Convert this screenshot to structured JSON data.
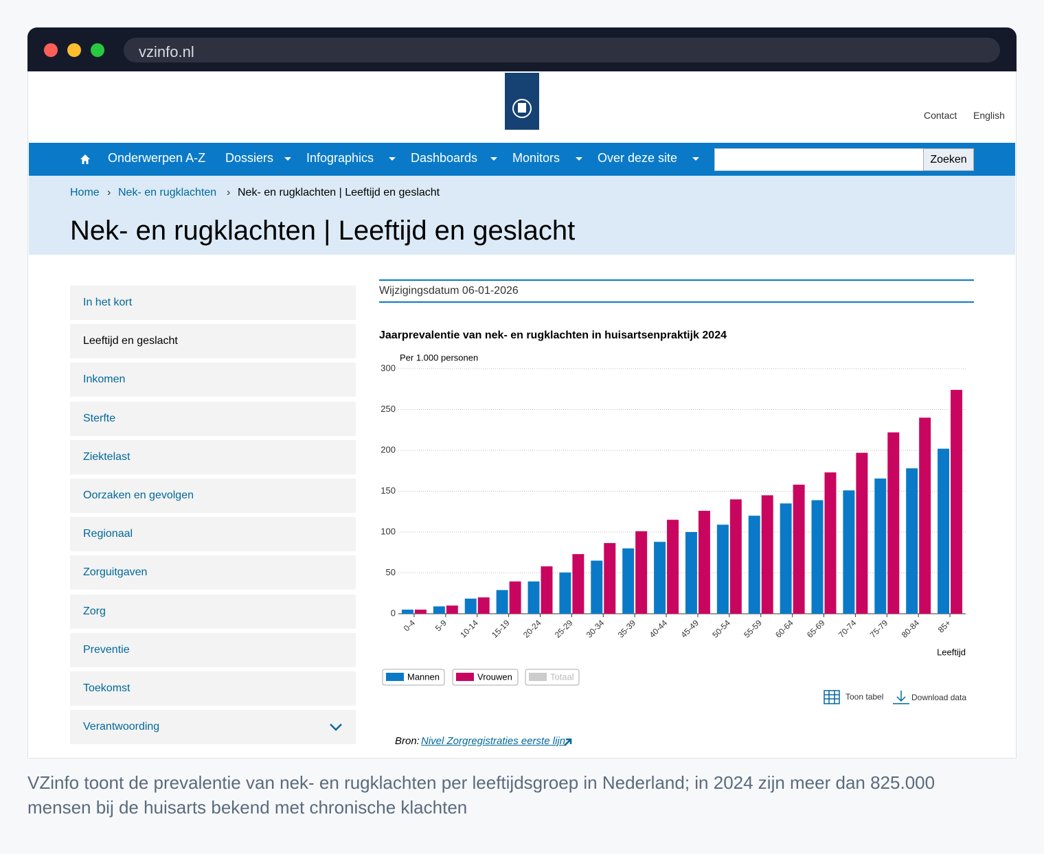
{
  "browser": {
    "url": "vzinfo.nl"
  },
  "header": {
    "links": [
      "Contact",
      "English"
    ]
  },
  "nav": {
    "items": [
      "Onderwerpen A-Z",
      "Dossiers",
      "Infographics",
      "Dashboards",
      "Monitors",
      "Over deze site"
    ],
    "search_button": "Zoeken"
  },
  "breadcrumb": [
    "Home",
    "Nek- en rugklachten",
    "Nek- en rugklachten | Leeftijd en geslacht"
  ],
  "page_title": "Nek- en rugklachten | Leeftijd en geslacht",
  "sidebar": [
    "In het kort",
    "Leeftijd en geslacht",
    "Inkomen",
    "Sterfte",
    "Ziektelast",
    "Oorzaken en gevolgen",
    "Regionaal",
    "Zorguitgaven",
    "Zorg",
    "Preventie",
    "Toekomst",
    "Verantwoording"
  ],
  "modified": "Wijzigingsdatum 06-01-2026",
  "chart_data": {
    "type": "bar",
    "title": "Jaarprevalentie van nek- en rugklachten in huisartsenpraktijk 2024",
    "y_label": "Per 1.000 personen",
    "x_label": "Leeftijd",
    "categories": [
      "0-4",
      "5-9",
      "10-14",
      "15-19",
      "20-24",
      "25-29",
      "30-34",
      "35-39",
      "40-44",
      "45-49",
      "50-54",
      "55-59",
      "60-64",
      "65-69",
      "70-74",
      "75-79",
      "80-84",
      "85+"
    ],
    "series": [
      {
        "name": "Mannen",
        "color": "#0a7ac8",
        "values": [
          5,
          9,
          18.5,
          29,
          39.5,
          50.5,
          65,
          80,
          88,
          100,
          109,
          120,
          135,
          139,
          151,
          165.5,
          178,
          202
        ]
      },
      {
        "name": "Vrouwen",
        "color": "#c9065f",
        "values": [
          5,
          10,
          20,
          39.5,
          58,
          73,
          86.5,
          101,
          115,
          126,
          140,
          145,
          158,
          173,
          197,
          222,
          240,
          274
        ]
      }
    ],
    "inactive_legend": [
      {
        "name": "Totaal",
        "color": "#cccccc"
      }
    ],
    "ylim": [
      0,
      300
    ],
    "yticks": [
      0,
      50,
      100,
      150,
      200,
      250,
      300
    ],
    "grid": true
  },
  "chart_actions": [
    "Toon tabel",
    "Download data"
  ],
  "source": {
    "label": "Bron:",
    "link": "Nivel Zorgregistraties eerste lijn"
  },
  "caption": "VZinfo toont de prevalentie van nek- en rugklachten per leeftijdsgroep in Nederland; in 2024 zijn meer dan 825.000 mensen bij de huisarts bekend met chronische klachten"
}
